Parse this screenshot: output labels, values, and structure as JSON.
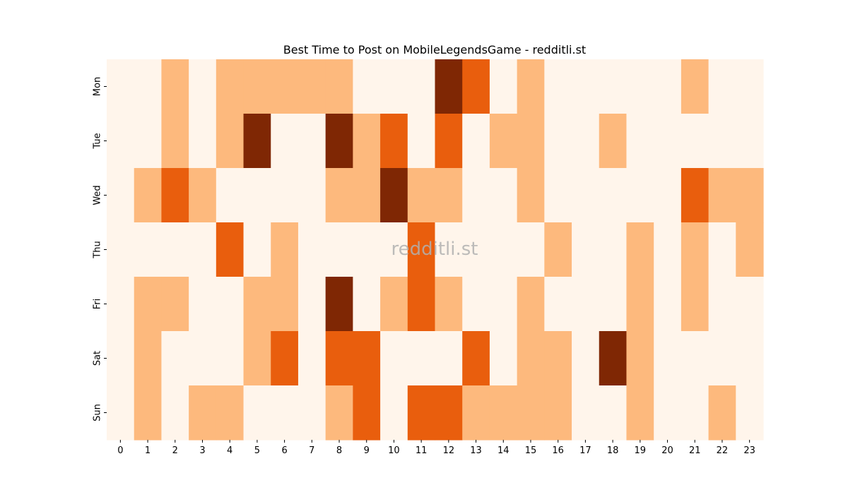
{
  "chart_data": {
    "type": "heatmap",
    "title": "Best Time to Post on MobileLegendsGame - redditli.st",
    "xlabel": "",
    "ylabel": "",
    "x_categories": [
      "0",
      "1",
      "2",
      "3",
      "4",
      "5",
      "6",
      "7",
      "8",
      "9",
      "10",
      "11",
      "12",
      "13",
      "14",
      "15",
      "16",
      "17",
      "18",
      "19",
      "20",
      "21",
      "22",
      "23"
    ],
    "y_categories": [
      "Mon",
      "Tue",
      "Wed",
      "Thu",
      "Fri",
      "Sat",
      "Sun"
    ],
    "colormap": "Oranges",
    "level_colors": [
      "#fff5eb",
      "#fdb97d",
      "#e95e0d",
      "#7f2704"
    ],
    "values": [
      [
        0,
        0,
        1,
        0,
        1,
        1,
        1,
        1,
        1,
        0,
        0,
        0,
        3,
        2,
        0,
        1,
        0,
        0,
        0,
        0,
        0,
        1,
        0,
        0
      ],
      [
        0,
        0,
        1,
        0,
        1,
        3,
        0,
        0,
        3,
        1,
        2,
        0,
        2,
        0,
        1,
        1,
        0,
        0,
        1,
        0,
        0,
        0,
        0,
        0
      ],
      [
        0,
        1,
        2,
        1,
        0,
        0,
        0,
        0,
        1,
        1,
        3,
        1,
        1,
        0,
        0,
        1,
        0,
        0,
        0,
        0,
        0,
        2,
        1,
        1
      ],
      [
        0,
        0,
        0,
        0,
        2,
        0,
        1,
        0,
        0,
        0,
        0,
        2,
        0,
        0,
        0,
        0,
        1,
        0,
        0,
        1,
        0,
        1,
        0,
        1
      ],
      [
        0,
        1,
        1,
        0,
        0,
        1,
        1,
        0,
        3,
        0,
        1,
        2,
        1,
        0,
        0,
        1,
        0,
        0,
        0,
        1,
        0,
        1,
        0,
        0
      ],
      [
        0,
        1,
        0,
        0,
        0,
        1,
        2,
        0,
        2,
        2,
        0,
        0,
        0,
        2,
        0,
        1,
        1,
        0,
        3,
        1,
        0,
        0,
        0,
        0
      ],
      [
        0,
        1,
        0,
        1,
        1,
        0,
        0,
        0,
        1,
        2,
        0,
        2,
        2,
        1,
        1,
        1,
        1,
        0,
        0,
        1,
        0,
        0,
        1,
        0
      ]
    ],
    "grid": false,
    "colorbar": false,
    "watermark": "redditli.st"
  }
}
